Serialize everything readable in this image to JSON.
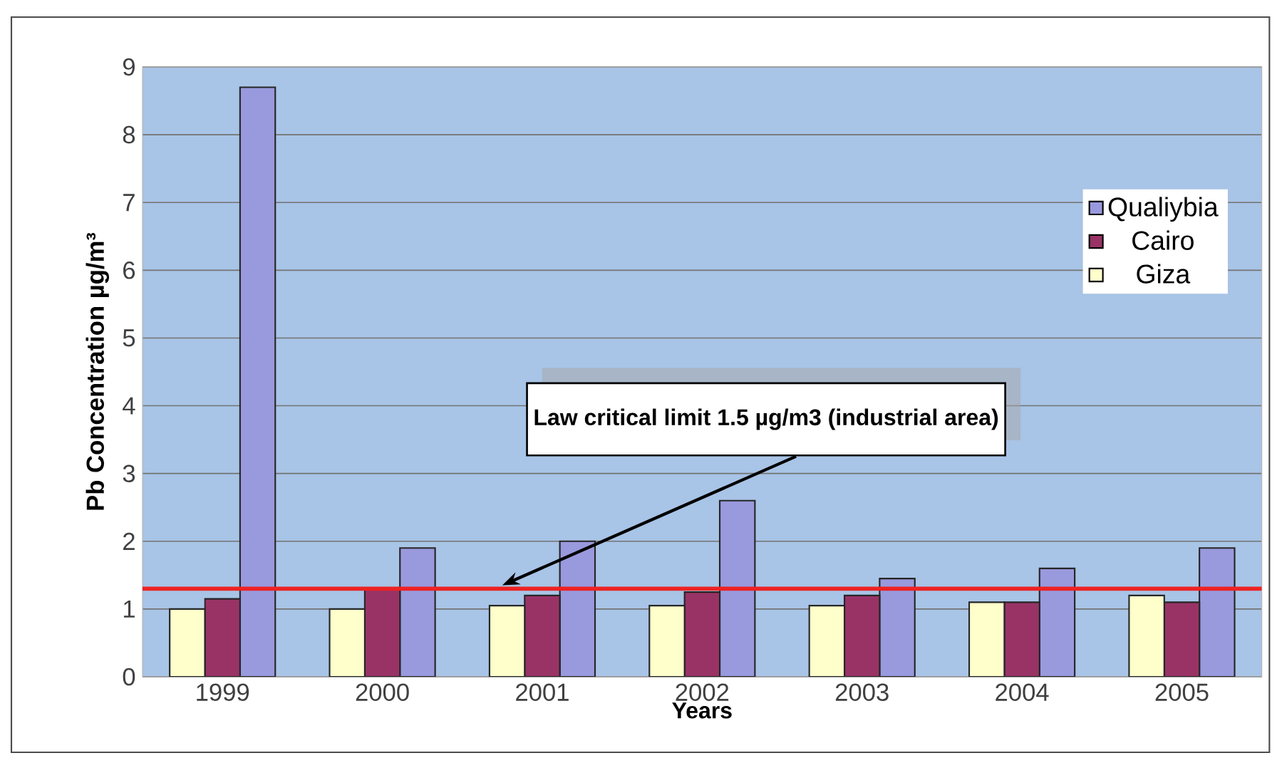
{
  "chart_data": {
    "type": "bar",
    "xlabel": "Years",
    "ylabel": "Pb Concentration  µg/m³",
    "categories": [
      "1999",
      "2000",
      "2001",
      "2002",
      "2003",
      "2004",
      "2005"
    ],
    "series": [
      {
        "name": "Qualiybia",
        "color": "#9999dd",
        "values": [
          8.7,
          1.9,
          2.0,
          2.6,
          1.45,
          1.6,
          1.9
        ]
      },
      {
        "name": "Cairo",
        "color": "#993366",
        "values": [
          1.15,
          1.3,
          1.2,
          1.25,
          1.2,
          1.1,
          1.1
        ]
      },
      {
        "name": "Giza",
        "color": "#ffffcc",
        "values": [
          1.0,
          1.0,
          1.05,
          1.05,
          1.05,
          1.1,
          1.2
        ]
      }
    ],
    "ylim": [
      0,
      9
    ],
    "yticks": [
      0,
      1,
      2,
      3,
      4,
      5,
      6,
      7,
      8,
      9
    ],
    "grid": "y",
    "legend": "top right",
    "ref_lines": [
      {
        "axis": "y",
        "value": 1.3,
        "label": "Law critical limit 1.5 µg/m3 (industrial area)",
        "color": "#ee2222"
      }
    ]
  }
}
